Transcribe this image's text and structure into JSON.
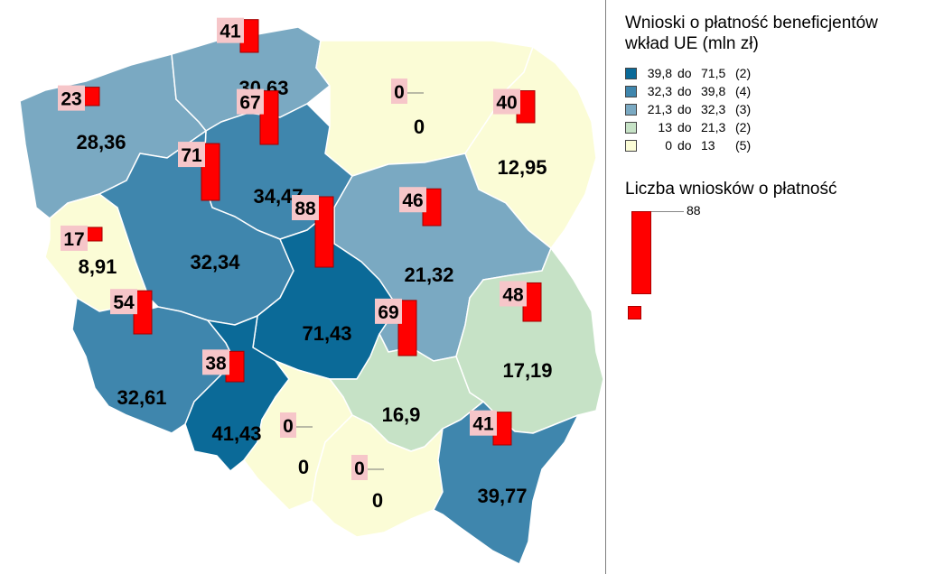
{
  "legend": {
    "title_line1": "Wnioski o płatność beneficjentów",
    "title_line2": "wkład UE (mln zł)",
    "classes": [
      {
        "from": "39,8",
        "do": "do",
        "to": "71,5",
        "count": "(2)",
        "color": "#0b6a98"
      },
      {
        "from": "32,3",
        "do": "do",
        "to": "39,8",
        "count": "(4)",
        "color": "#3f86ad"
      },
      {
        "from": "21,3",
        "do": "do",
        "to": "32,3",
        "count": "(3)",
        "color": "#7aa9c2"
      },
      {
        "from": "13",
        "do": "do",
        "to": "21,3",
        "count": "(2)",
        "color": "#c6e2c6"
      },
      {
        "from": "0",
        "do": "do",
        "to": "13",
        "count": "(5)",
        "color": "#fbfcd6"
      }
    ],
    "bars_title": "Liczba wniosków o płatność",
    "bars_max_label": "88"
  },
  "regions": [
    {
      "id": "zachodniopomorskie",
      "count": "23",
      "value": "28,36",
      "count_num": 23,
      "class": 2
    },
    {
      "id": "pomorskie",
      "count": "41",
      "value": "30,63",
      "count_num": 41,
      "class": 2
    },
    {
      "id": "warminsko-mazurskie",
      "count": "0",
      "value": "0",
      "count_num": 0,
      "class": 4
    },
    {
      "id": "podlaskie",
      "count": "40",
      "value": "12,95",
      "count_num": 40,
      "class": 4
    },
    {
      "id": "kujawsko-pomorskie",
      "count": "67",
      "value": "34,47",
      "count_num": 67,
      "class": 1
    },
    {
      "id": "lubuskie",
      "count": "17",
      "value": "8,91",
      "count_num": 17,
      "class": 4
    },
    {
      "id": "wielkopolskie",
      "count": "71",
      "value": "32,34",
      "count_num": 71,
      "class": 1
    },
    {
      "id": "mazowieckie",
      "count": "46",
      "value": "21,32",
      "count_num": 46,
      "class": 2
    },
    {
      "id": "lodzkie",
      "count": "88",
      "value": "71,43",
      "count_num": 88,
      "class": 0
    },
    {
      "id": "lubelskie",
      "count": "48",
      "value": "17,19",
      "count_num": 48,
      "class": 3
    },
    {
      "id": "dolnoslaskie",
      "count": "54",
      "value": "32,61",
      "count_num": 54,
      "class": 1
    },
    {
      "id": "opolskie",
      "count": "38",
      "value": "41,43",
      "count_num": 38,
      "class": 0
    },
    {
      "id": "swietokrzyskie",
      "count": "69",
      "value": "16,9",
      "count_num": 69,
      "class": 3
    },
    {
      "id": "slaskie",
      "count": "0",
      "value": "0",
      "count_num": 0,
      "class": 4
    },
    {
      "id": "malopolskie",
      "count": "0",
      "value": "0",
      "count_num": 0,
      "class": 4
    },
    {
      "id": "podkarpackie",
      "count": "41",
      "value": "39,77",
      "count_num": 41,
      "class": 1
    }
  ]
}
